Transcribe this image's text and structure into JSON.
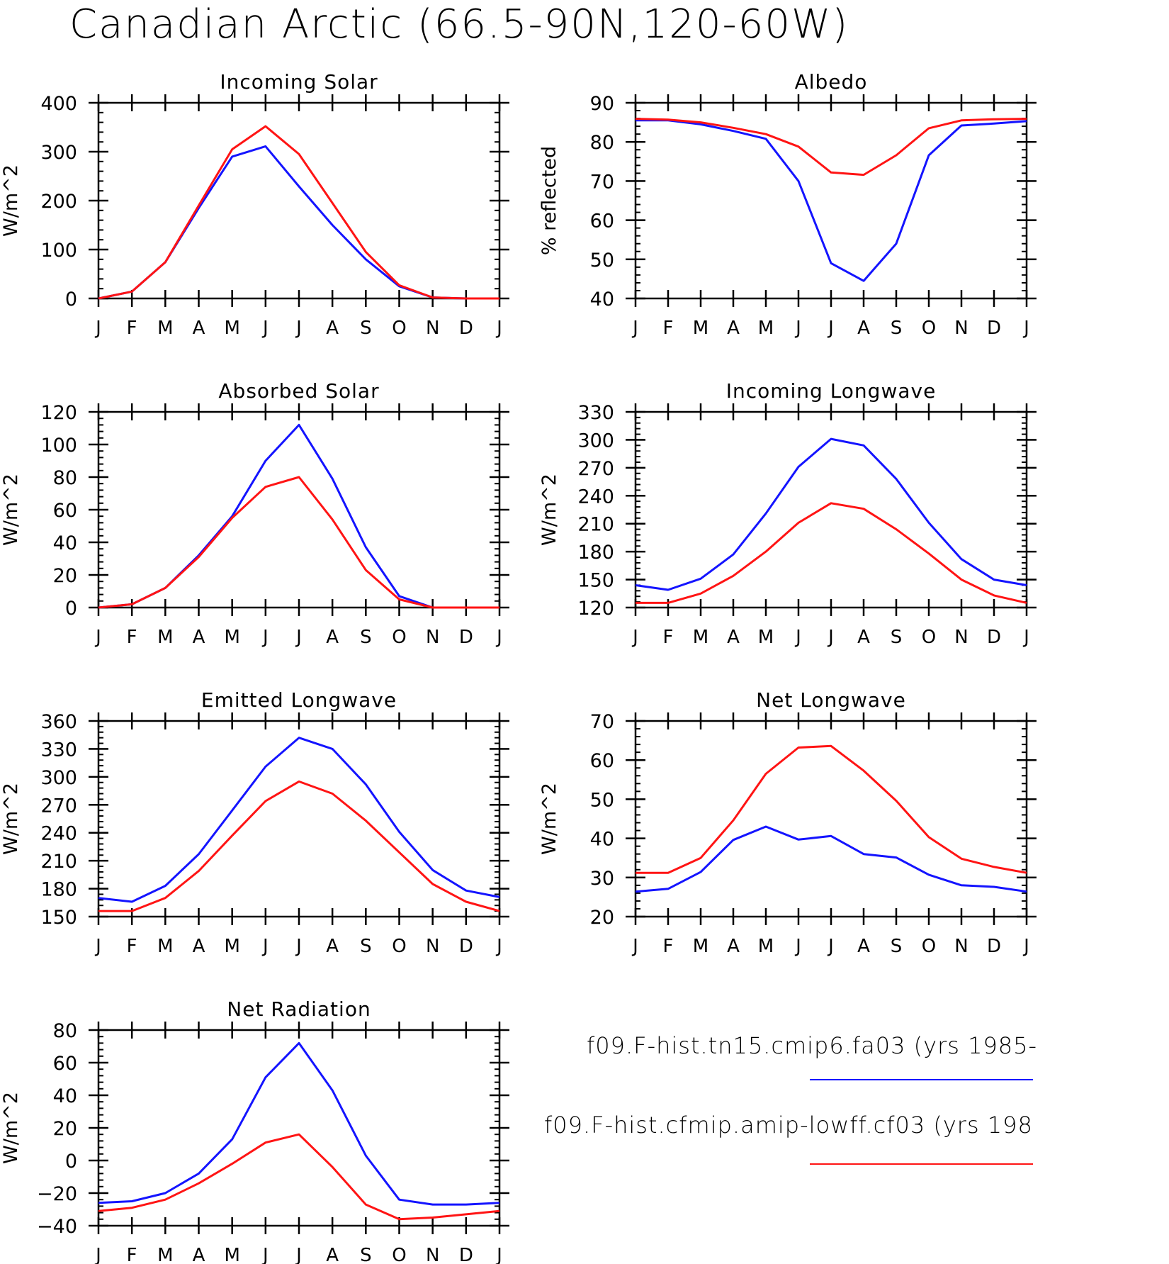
{
  "title": "Canadian Arctic (66.5-90N,120-60W)",
  "colors": {
    "series1": "#1414ff",
    "series2": "#ff1414",
    "axis": "#000000"
  },
  "legend": [
    {
      "label": "f09.F-hist.tn15.cmip6.fa03 (yrs 1985-",
      "color": "#1414ff"
    },
    {
      "label": "f09.F-hist.cfmip.amip-lowff.cf03 (yrs 198",
      "color": "#ff1414"
    }
  ],
  "chart_data": [
    {
      "type": "line",
      "title": "Incoming Solar",
      "ylabel": "W/m^2",
      "categories": [
        "J",
        "F",
        "M",
        "A",
        "M",
        "J",
        "J",
        "A",
        "S",
        "O",
        "N",
        "D",
        "J"
      ],
      "ylim": [
        0,
        400
      ],
      "yticks": [
        0,
        100,
        200,
        300,
        400
      ],
      "series": [
        {
          "color": "#1414ff",
          "values": [
            0,
            14,
            74,
            185,
            290,
            311,
            229,
            150,
            80,
            25,
            2,
            0,
            0
          ]
        },
        {
          "color": "#ff1414",
          "values": [
            0,
            14,
            74,
            190,
            305,
            352,
            295,
            195,
            95,
            27,
            2,
            0,
            0
          ]
        }
      ]
    },
    {
      "type": "line",
      "title": "Albedo",
      "ylabel": "% reflected",
      "categories": [
        "J",
        "F",
        "M",
        "A",
        "M",
        "J",
        "J",
        "A",
        "S",
        "O",
        "N",
        "D",
        "J"
      ],
      "ylim": [
        40,
        90
      ],
      "yticks": [
        40,
        50,
        60,
        70,
        80,
        90
      ],
      "series": [
        {
          "color": "#1414ff",
          "values": [
            85.5,
            85.5,
            84.5,
            82.8,
            80.8,
            70,
            49,
            44.5,
            54,
            76.6,
            84.2,
            84.7,
            85.3
          ]
        },
        {
          "color": "#ff1414",
          "values": [
            85.9,
            85.7,
            85.0,
            83.6,
            82.0,
            78.8,
            72.2,
            71.6,
            76.6,
            83.5,
            85.5,
            85.8,
            85.9
          ]
        }
      ]
    },
    {
      "type": "line",
      "title": "Absorbed Solar",
      "ylabel": "W/m^2",
      "categories": [
        "J",
        "F",
        "M",
        "A",
        "M",
        "J",
        "J",
        "A",
        "S",
        "O",
        "N",
        "D",
        "J"
      ],
      "ylim": [
        0,
        120
      ],
      "yticks": [
        0,
        20,
        40,
        60,
        80,
        100,
        120
      ],
      "series": [
        {
          "color": "#1414ff",
          "values": [
            0,
            2,
            12,
            32,
            56,
            90,
            112,
            79,
            37,
            7,
            0,
            0,
            0
          ]
        },
        {
          "color": "#ff1414",
          "values": [
            0,
            2,
            12,
            31,
            55,
            74,
            80,
            54,
            23,
            5,
            0,
            0,
            0
          ]
        }
      ]
    },
    {
      "type": "line",
      "title": "Incoming Longwave",
      "ylabel": "W/m^2",
      "categories": [
        "J",
        "F",
        "M",
        "A",
        "M",
        "J",
        "J",
        "A",
        "S",
        "O",
        "N",
        "D",
        "J"
      ],
      "ylim": [
        120,
        330
      ],
      "yticks": [
        120,
        150,
        180,
        210,
        240,
        270,
        300,
        330
      ],
      "series": [
        {
          "color": "#1414ff",
          "values": [
            144,
            139,
            151,
            177,
            221,
            271,
            301,
            294,
            258,
            211,
            172,
            150,
            144
          ]
        },
        {
          "color": "#ff1414",
          "values": [
            125,
            125,
            135,
            154,
            180,
            211,
            232,
            226,
            204,
            178,
            150,
            133,
            125
          ]
        }
      ]
    },
    {
      "type": "line",
      "title": "Emitted Longwave",
      "ylabel": "W/m^2",
      "categories": [
        "J",
        "F",
        "M",
        "A",
        "M",
        "J",
        "J",
        "A",
        "S",
        "O",
        "N",
        "D",
        "J"
      ],
      "ylim": [
        150,
        360
      ],
      "yticks": [
        150,
        180,
        210,
        240,
        270,
        300,
        330,
        360
      ],
      "series": [
        {
          "color": "#1414ff",
          "values": [
            170,
            166,
            183,
            217,
            264,
            311,
            342,
            330,
            292,
            241,
            200,
            178,
            171
          ]
        },
        {
          "color": "#ff1414",
          "values": [
            156,
            156,
            170,
            199,
            237,
            274,
            295,
            282,
            253,
            219,
            185,
            166,
            156
          ]
        }
      ]
    },
    {
      "type": "line",
      "title": "Net Longwave",
      "ylabel": "W/m^2",
      "categories": [
        "J",
        "F",
        "M",
        "A",
        "M",
        "J",
        "J",
        "A",
        "S",
        "O",
        "N",
        "D",
        "J"
      ],
      "ylim": [
        20,
        70
      ],
      "yticks": [
        20,
        30,
        40,
        50,
        60,
        70
      ],
      "series": [
        {
          "color": "#1414ff",
          "values": [
            26.4,
            27.1,
            31.4,
            39.6,
            43.0,
            39.7,
            40.6,
            36.0,
            35.1,
            30.7,
            28.0,
            27.6,
            26.4
          ]
        },
        {
          "color": "#ff1414",
          "values": [
            31.2,
            31.2,
            35.0,
            44.6,
            56.5,
            63.2,
            63.6,
            57.3,
            49.6,
            40.3,
            34.8,
            32.7,
            31.2
          ]
        }
      ]
    },
    {
      "type": "line",
      "title": "Net Radiation",
      "ylabel": "W/m^2",
      "categories": [
        "J",
        "F",
        "M",
        "A",
        "M",
        "J",
        "J",
        "A",
        "S",
        "O",
        "N",
        "D",
        "J"
      ],
      "ylim": [
        -40,
        80
      ],
      "yticks": [
        -40,
        -20,
        0,
        20,
        40,
        60,
        80
      ],
      "series": [
        {
          "color": "#1414ff",
          "values": [
            -26,
            -25,
            -20,
            -8,
            13,
            51,
            72,
            43,
            3,
            -24,
            -27,
            -27,
            -26
          ]
        },
        {
          "color": "#ff1414",
          "values": [
            -31,
            -29,
            -24,
            -14,
            -2,
            11,
            16,
            -4,
            -27,
            -36,
            -35,
            -33,
            -31
          ]
        }
      ]
    }
  ]
}
